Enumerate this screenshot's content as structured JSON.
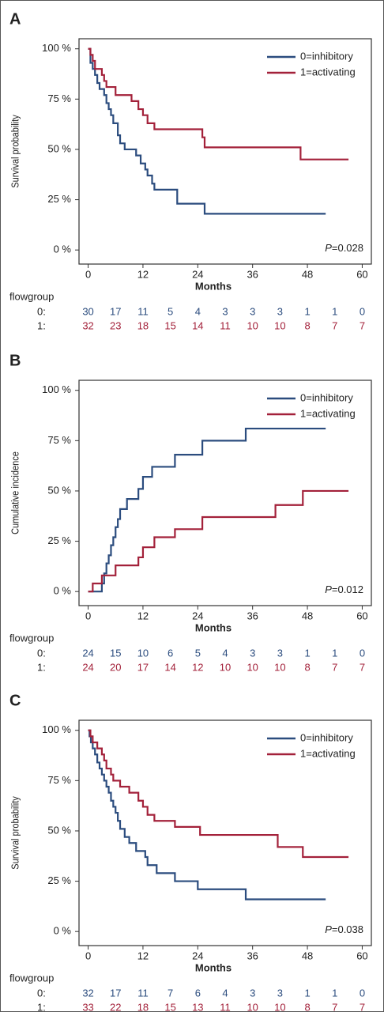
{
  "chart_data": [
    {
      "type": "step",
      "panel": "A",
      "ylabel": "Survival probability",
      "xlabel": "Months",
      "xlim": [
        -2,
        62
      ],
      "ylim": [
        -7,
        105
      ],
      "xticks": [
        0,
        12,
        24,
        36,
        48,
        60
      ],
      "yticks": [
        {
          "value": 0,
          "label": "0 %"
        },
        {
          "value": 25,
          "label": "25 %"
        },
        {
          "value": 50,
          "label": "50 %"
        },
        {
          "value": 75,
          "label": "75 %"
        },
        {
          "value": 100,
          "label": "100 %"
        }
      ],
      "legend": "upper right",
      "p_italic": "P",
      "p_value": "=0.028",
      "series": [
        {
          "name": "0=inhibitory",
          "color": "#2b4c7e",
          "x": [
            0,
            0.5,
            1,
            1.5,
            2,
            2.5,
            3.5,
            4,
            4.5,
            5,
            5.5,
            6.5,
            7,
            8,
            10.5,
            11.5,
            12.5,
            13,
            14,
            14.5,
            19.5,
            25.5,
            52
          ],
          "values": [
            100,
            93,
            90,
            87,
            83,
            80,
            77,
            73,
            70,
            67,
            63,
            57,
            53,
            50,
            47,
            43,
            40,
            37,
            33,
            30,
            23,
            18,
            18
          ]
        },
        {
          "name": "1=activating",
          "color": "#a3213a",
          "x": [
            0,
            0.5,
            1,
            1.5,
            3,
            3.5,
            4,
            6,
            9.5,
            11,
            12,
            13,
            14.5,
            25,
            25.5,
            46.5,
            57
          ],
          "values": [
            100,
            97,
            94,
            90,
            87,
            84,
            81,
            77,
            74,
            70,
            67,
            63,
            60,
            56,
            51,
            45,
            45
          ]
        }
      ],
      "risk_table": {
        "title": "flowgroup",
        "times": [
          0,
          6,
          12,
          18,
          24,
          30,
          36,
          42,
          48,
          54,
          60
        ],
        "rows": [
          {
            "label": "0:",
            "color": "#2b4c7e",
            "counts": [
              30,
              17,
              11,
              5,
              4,
              3,
              3,
              3,
              1,
              1,
              0
            ]
          },
          {
            "label": "1:",
            "color": "#a3213a",
            "counts": [
              32,
              23,
              18,
              15,
              14,
              11,
              10,
              10,
              8,
              7,
              7
            ]
          }
        ]
      }
    },
    {
      "type": "step",
      "panel": "B",
      "ylabel": "Cumulative incidence",
      "xlabel": "Months",
      "xlim": [
        -2,
        62
      ],
      "ylim": [
        -7,
        105
      ],
      "xticks": [
        0,
        12,
        24,
        36,
        48,
        60
      ],
      "yticks": [
        {
          "value": 0,
          "label": "0 %"
        },
        {
          "value": 25,
          "label": "25 %"
        },
        {
          "value": 50,
          "label": "50 %"
        },
        {
          "value": 75,
          "label": "75 %"
        },
        {
          "value": 100,
          "label": "100 %"
        }
      ],
      "legend": "upper right",
      "p_italic": "P",
      "p_value": "=0.012",
      "series": [
        {
          "name": "0=inhibitory",
          "color": "#2b4c7e",
          "x": [
            0,
            3,
            3.5,
            4,
            4.5,
            5,
            5.5,
            6,
            6.5,
            7,
            8.5,
            11,
            12,
            14,
            19,
            25,
            34.5,
            52
          ],
          "values": [
            0,
            4,
            9,
            14,
            18,
            23,
            27,
            32,
            36,
            41,
            46,
            51,
            57,
            62,
            68,
            75,
            81,
            81
          ]
        },
        {
          "name": "1=activating",
          "color": "#a3213a",
          "x": [
            0,
            1,
            3,
            6,
            11,
            12,
            14.5,
            19,
            25,
            41,
            47,
            57
          ],
          "values": [
            0,
            4,
            8,
            13,
            17,
            22,
            27,
            31,
            37,
            43,
            50,
            50
          ]
        }
      ],
      "risk_table": {
        "title": "flowgroup",
        "times": [
          0,
          6,
          12,
          18,
          24,
          30,
          36,
          42,
          48,
          54,
          60
        ],
        "rows": [
          {
            "label": "0:",
            "color": "#2b4c7e",
            "counts": [
              24,
              15,
              10,
              6,
              5,
              4,
              3,
              3,
              1,
              1,
              0
            ]
          },
          {
            "label": "1:",
            "color": "#a3213a",
            "counts": [
              24,
              20,
              17,
              14,
              12,
              10,
              10,
              10,
              8,
              7,
              7
            ]
          }
        ]
      }
    },
    {
      "type": "step",
      "panel": "C",
      "ylabel": "Survival probability",
      "xlabel": "Months",
      "xlim": [
        -2,
        62
      ],
      "ylim": [
        -7,
        105
      ],
      "xticks": [
        0,
        12,
        24,
        36,
        48,
        60
      ],
      "yticks": [
        {
          "value": 0,
          "label": "0 %"
        },
        {
          "value": 25,
          "label": "25 %"
        },
        {
          "value": 50,
          "label": "50 %"
        },
        {
          "value": 75,
          "label": "75 %"
        },
        {
          "value": 100,
          "label": "100 %"
        }
      ],
      "legend": "upper right",
      "p_italic": "P",
      "p_value": "=0.038",
      "series": [
        {
          "name": "0=inhibitory",
          "color": "#2b4c7e",
          "x": [
            0,
            0.3,
            0.6,
            1,
            1.5,
            2,
            2.5,
            3,
            3.5,
            4,
            4.5,
            5,
            5.5,
            6,
            6.5,
            7,
            8,
            9,
            10.5,
            12.5,
            13,
            15,
            19,
            24,
            34.5,
            52
          ],
          "values": [
            100,
            97,
            94,
            91,
            88,
            84,
            81,
            78,
            75,
            72,
            69,
            65,
            62,
            59,
            55,
            51,
            47,
            44,
            40,
            37,
            33,
            29,
            25,
            21,
            16,
            16
          ]
        },
        {
          "name": "1=activating",
          "color": "#a3213a",
          "x": [
            0,
            0.5,
            1,
            2,
            3,
            3.5,
            4,
            5,
            5.5,
            7,
            9,
            11,
            12,
            13,
            14.5,
            19,
            24.5,
            41,
            41.5,
            47,
            57
          ],
          "values": [
            100,
            97,
            94,
            91,
            88,
            85,
            81,
            78,
            75,
            72,
            69,
            65,
            62,
            58,
            55,
            52,
            48,
            48,
            42,
            37,
            37
          ]
        }
      ],
      "risk_table": {
        "title": "flowgroup",
        "times": [
          0,
          6,
          12,
          18,
          24,
          30,
          36,
          42,
          48,
          54,
          60
        ],
        "rows": [
          {
            "label": "0:",
            "color": "#2b4c7e",
            "counts": [
              32,
              17,
              11,
              7,
              6,
              4,
              3,
              3,
              1,
              1,
              0
            ]
          },
          {
            "label": "1:",
            "color": "#a3213a",
            "counts": [
              33,
              22,
              18,
              15,
              13,
              11,
              10,
              10,
              8,
              7,
              7
            ]
          }
        ]
      }
    }
  ]
}
